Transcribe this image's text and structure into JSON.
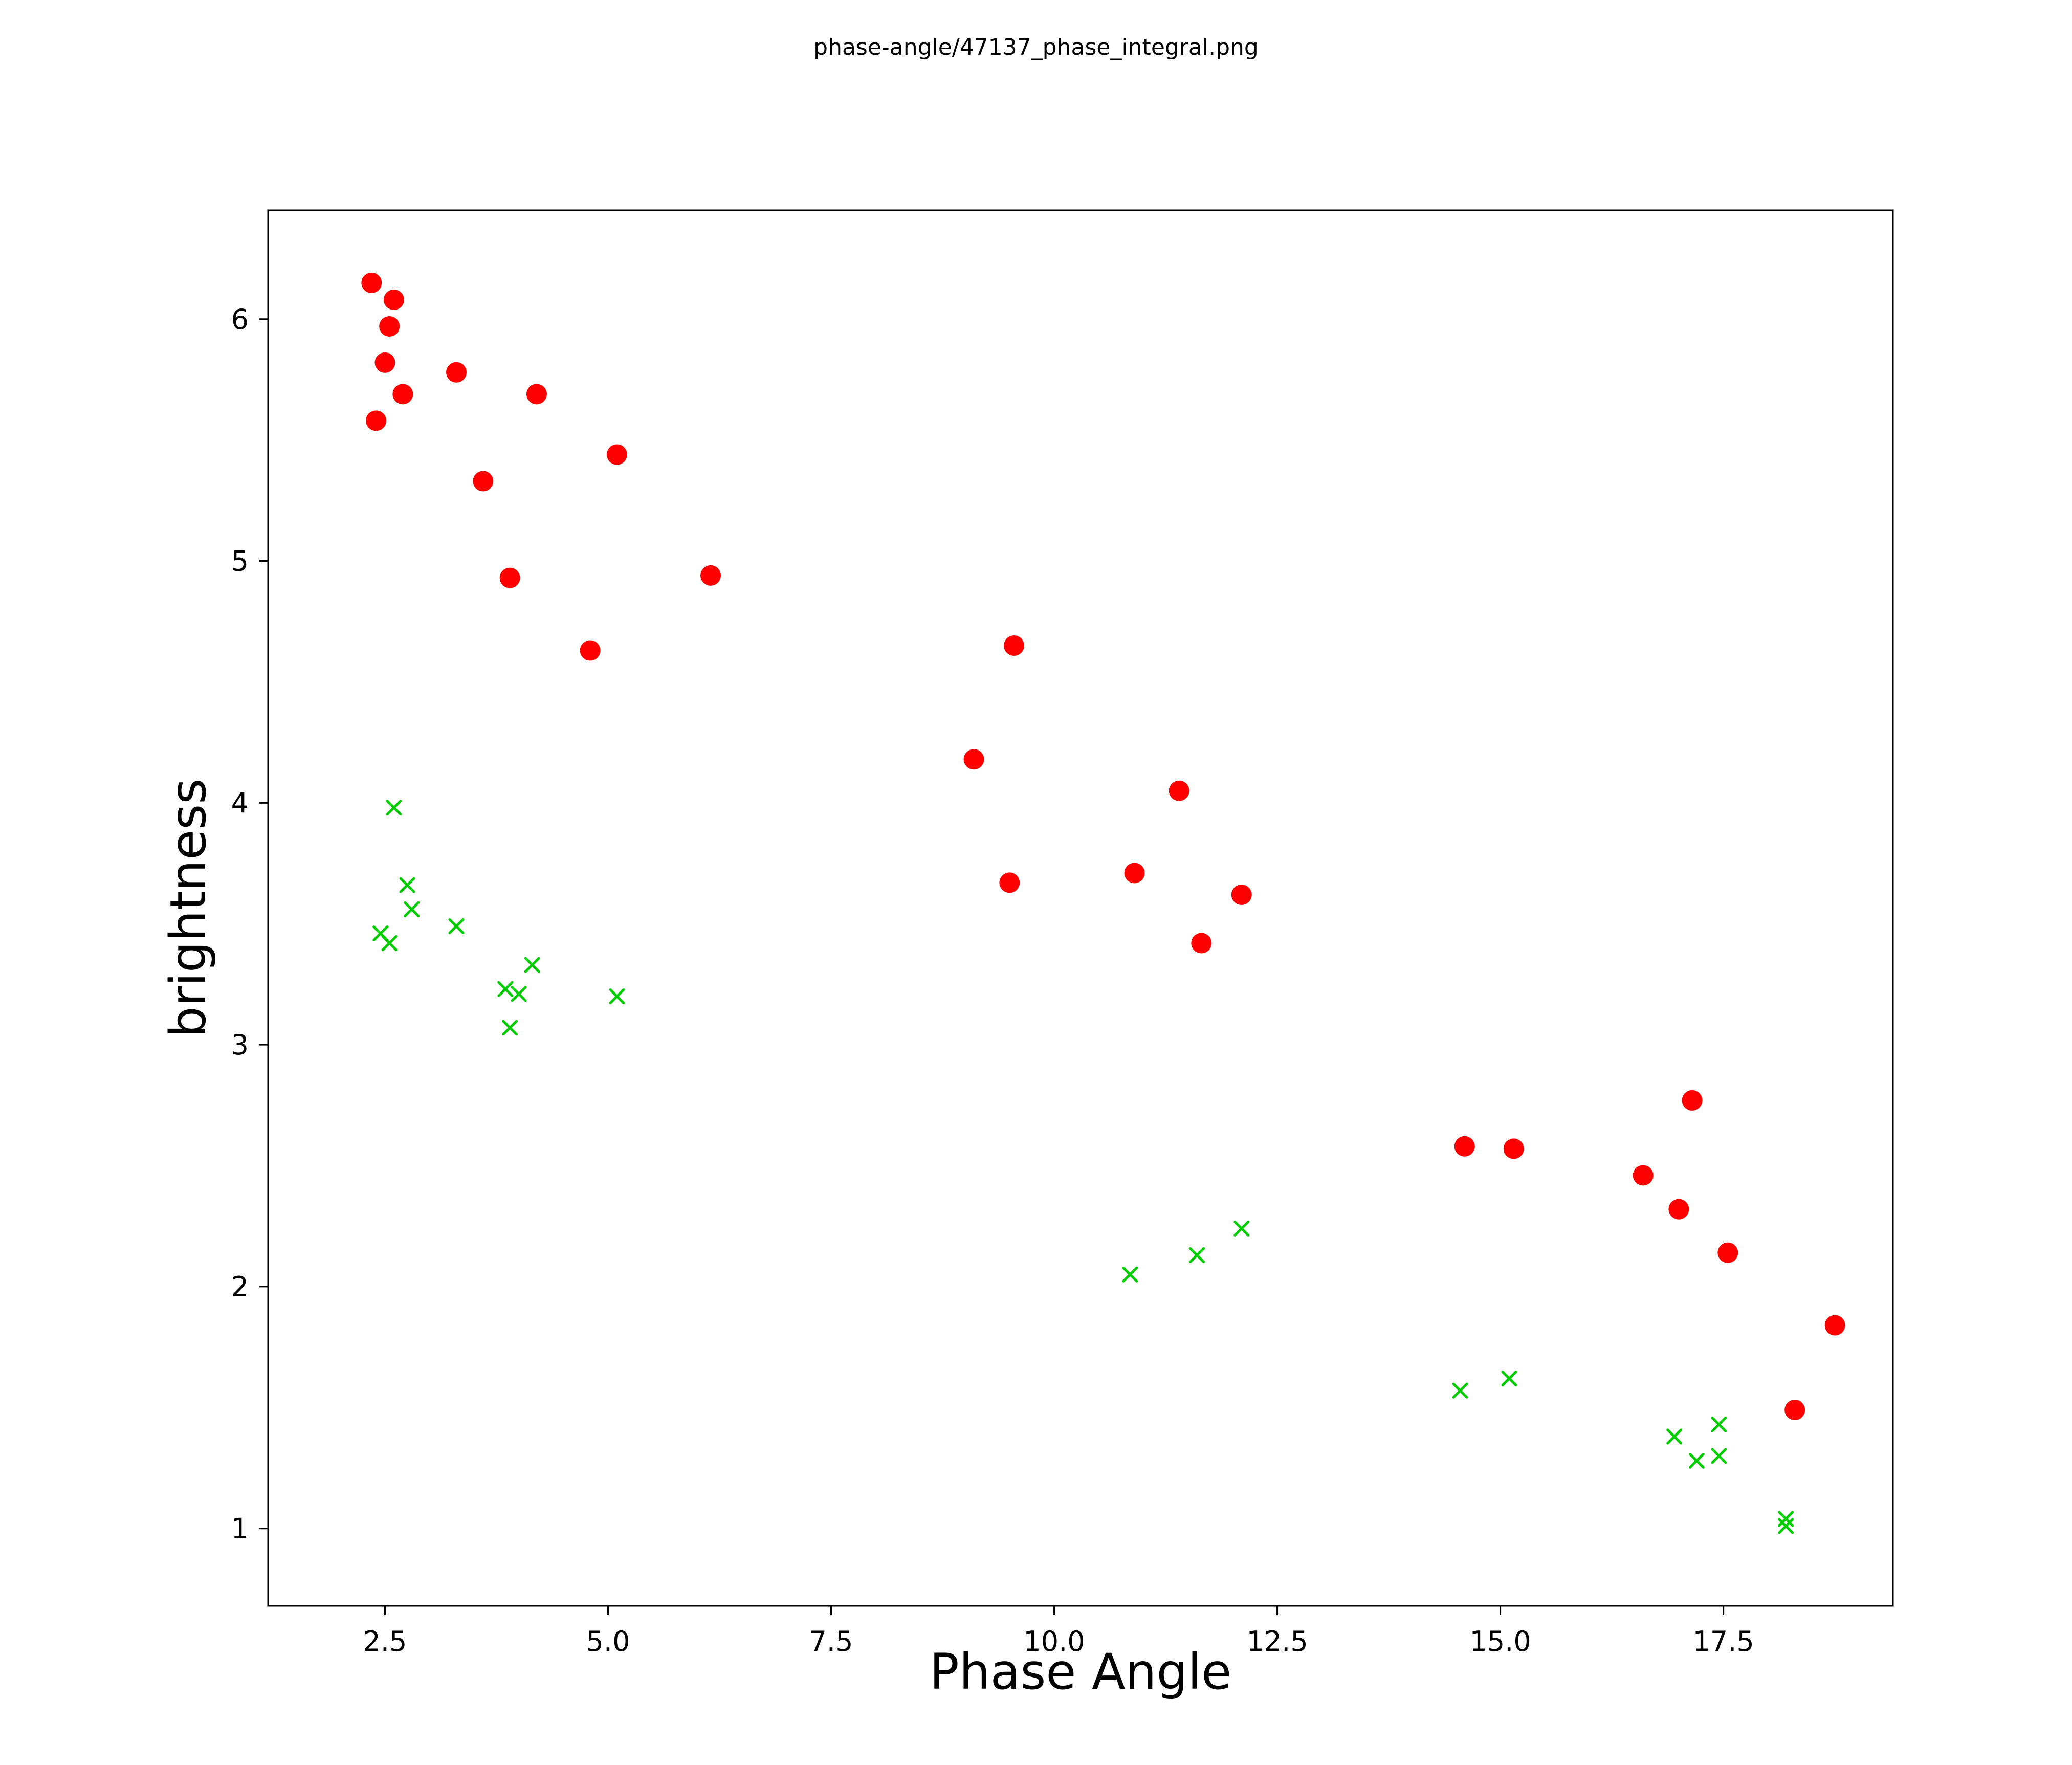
{
  "chart_data": {
    "type": "scatter",
    "title": "phase-angle/47137_phase_integral.png",
    "xlabel": "Phase Angle",
    "ylabel": "brightness",
    "xlim": [
      1.19,
      19.4
    ],
    "ylim": [
      0.68,
      6.45
    ],
    "x_ticks": [
      2.5,
      5.0,
      7.5,
      10.0,
      12.5,
      15.0,
      17.5
    ],
    "x_tick_labels": [
      "2.5",
      "5.0",
      "7.5",
      "10.0",
      "12.5",
      "15.0",
      "17.5"
    ],
    "y_ticks": [
      1,
      2,
      3,
      4,
      5,
      6
    ],
    "y_tick_labels": [
      "1",
      "2",
      "3",
      "4",
      "5",
      "6"
    ],
    "grid": false,
    "legend": false,
    "background_color": "#ffffff",
    "axis_color": "#000000",
    "series": [
      {
        "name": "red-circles",
        "marker": "circle",
        "color": "#ff0000",
        "points": [
          [
            2.35,
            6.15
          ],
          [
            2.6,
            6.08
          ],
          [
            2.55,
            5.97
          ],
          [
            2.5,
            5.82
          ],
          [
            2.7,
            5.69
          ],
          [
            2.4,
            5.58
          ],
          [
            3.3,
            5.78
          ],
          [
            4.2,
            5.69
          ],
          [
            3.6,
            5.33
          ],
          [
            5.1,
            5.44
          ],
          [
            3.9,
            4.93
          ],
          [
            6.15,
            4.94
          ],
          [
            4.8,
            4.63
          ],
          [
            9.55,
            4.65
          ],
          [
            9.1,
            4.18
          ],
          [
            11.4,
            4.05
          ],
          [
            9.5,
            3.67
          ],
          [
            10.9,
            3.71
          ],
          [
            12.1,
            3.62
          ],
          [
            11.65,
            3.42
          ],
          [
            14.6,
            2.58
          ],
          [
            15.15,
            2.57
          ],
          [
            17.15,
            2.77
          ],
          [
            16.6,
            2.46
          ],
          [
            17.0,
            2.32
          ],
          [
            17.55,
            2.14
          ],
          [
            18.75,
            1.84
          ],
          [
            18.3,
            1.49
          ]
        ]
      },
      {
        "name": "green-x",
        "marker": "x",
        "color": "#00cc00",
        "points": [
          [
            2.6,
            3.98
          ],
          [
            2.75,
            3.66
          ],
          [
            2.8,
            3.56
          ],
          [
            2.45,
            3.46
          ],
          [
            2.55,
            3.42
          ],
          [
            3.3,
            3.49
          ],
          [
            3.85,
            3.23
          ],
          [
            4.0,
            3.21
          ],
          [
            4.15,
            3.33
          ],
          [
            3.9,
            3.07
          ],
          [
            5.1,
            3.2
          ],
          [
            10.85,
            2.05
          ],
          [
            11.6,
            2.13
          ],
          [
            12.1,
            2.24
          ],
          [
            14.55,
            1.57
          ],
          [
            15.1,
            1.62
          ],
          [
            16.95,
            1.38
          ],
          [
            17.45,
            1.43
          ],
          [
            17.2,
            1.28
          ],
          [
            17.45,
            1.3
          ],
          [
            18.2,
            1.04
          ],
          [
            18.2,
            1.01
          ]
        ]
      }
    ]
  }
}
